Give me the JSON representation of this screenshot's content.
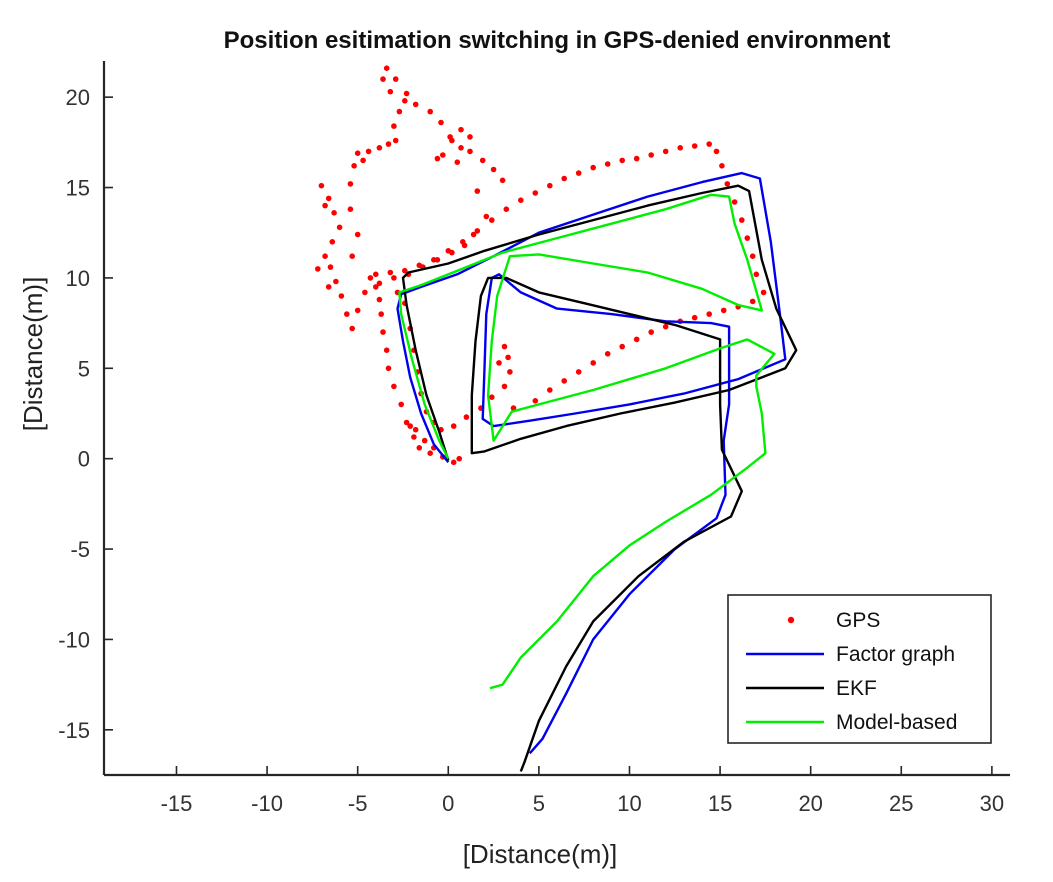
{
  "chart_data": {
    "type": "line",
    "title": "Position esitimation switching in GPS-denied environment",
    "xlabel": "[Distance(m)]",
    "ylabel": "[Distance(m)]",
    "xlim": [
      -19,
      31
    ],
    "ylim": [
      -17.5,
      22
    ],
    "xticks": [
      -15,
      -10,
      -5,
      0,
      5,
      10,
      15,
      20,
      25,
      30
    ],
    "yticks": [
      -15,
      -10,
      -5,
      0,
      5,
      10,
      15,
      20
    ],
    "grid": false,
    "legend_position": "bottom-right",
    "series": [
      {
        "name": "GPS",
        "style": "markers",
        "color": "#ff0000",
        "points": [
          [
            0.6,
            0.0
          ],
          [
            0.3,
            -0.2
          ],
          [
            -0.3,
            0.1
          ],
          [
            -1.0,
            0.3
          ],
          [
            -1.6,
            0.6
          ],
          [
            -1.9,
            1.2
          ],
          [
            -2.1,
            1.8
          ],
          [
            -1.8,
            1.6
          ],
          [
            -1.3,
            1.0
          ],
          [
            -0.8,
            0.6
          ],
          [
            -2.3,
            2.0
          ],
          [
            -2.6,
            3.0
          ],
          [
            -3.0,
            4.0
          ],
          [
            -3.3,
            5.0
          ],
          [
            -3.4,
            6.0
          ],
          [
            -3.6,
            7.0
          ],
          [
            -3.7,
            8.0
          ],
          [
            -3.8,
            8.8
          ],
          [
            -4.0,
            9.5
          ],
          [
            -4.3,
            10.0
          ],
          [
            -4.6,
            9.2
          ],
          [
            -5.0,
            8.2
          ],
          [
            -5.3,
            7.2
          ],
          [
            -5.6,
            8.0
          ],
          [
            -5.9,
            9.0
          ],
          [
            -6.2,
            9.8
          ],
          [
            -6.5,
            10.6
          ],
          [
            -6.8,
            11.2
          ],
          [
            -6.4,
            12.0
          ],
          [
            -6.0,
            12.8
          ],
          [
            -6.3,
            13.6
          ],
          [
            -6.6,
            14.4
          ],
          [
            -7.0,
            15.1
          ],
          [
            -6.8,
            14.0
          ],
          [
            -7.2,
            10.5
          ],
          [
            -6.6,
            9.5
          ],
          [
            -5.3,
            11.2
          ],
          [
            -5.0,
            12.4
          ],
          [
            -5.4,
            13.8
          ],
          [
            -5.4,
            15.2
          ],
          [
            -5.2,
            16.2
          ],
          [
            -5.0,
            16.9
          ],
          [
            -4.7,
            16.5
          ],
          [
            -4.4,
            17.0
          ],
          [
            -3.8,
            17.2
          ],
          [
            -3.3,
            17.4
          ],
          [
            -2.9,
            17.6
          ],
          [
            -3.0,
            18.4
          ],
          [
            -2.7,
            19.2
          ],
          [
            -2.4,
            19.8
          ],
          [
            -3.2,
            20.3
          ],
          [
            -3.6,
            21.0
          ],
          [
            -3.4,
            21.6
          ],
          [
            -2.9,
            21.0
          ],
          [
            -2.3,
            20.2
          ],
          [
            -1.8,
            19.6
          ],
          [
            -1.0,
            19.2
          ],
          [
            -0.4,
            18.6
          ],
          [
            0.1,
            17.8
          ],
          [
            0.7,
            17.2
          ],
          [
            1.2,
            17.0
          ],
          [
            1.9,
            16.5
          ],
          [
            2.5,
            16.0
          ],
          [
            3.0,
            15.4
          ],
          [
            1.2,
            17.8
          ],
          [
            0.7,
            18.2
          ],
          [
            0.2,
            17.6
          ],
          [
            -0.6,
            16.6
          ],
          [
            -0.3,
            16.8
          ],
          [
            0.5,
            16.4
          ],
          [
            1.6,
            14.8
          ],
          [
            2.1,
            13.4
          ],
          [
            1.4,
            12.4
          ],
          [
            0.9,
            11.8
          ],
          [
            0.2,
            11.4
          ],
          [
            -0.6,
            11.0
          ],
          [
            -1.4,
            10.6
          ],
          [
            -2.2,
            10.2
          ],
          [
            -3.0,
            10.0
          ],
          [
            -3.8,
            9.7
          ],
          [
            -2.8,
            9.2
          ],
          [
            -2.4,
            8.6
          ],
          [
            -2.1,
            7.2
          ],
          [
            -1.9,
            6.0
          ],
          [
            -1.7,
            4.8
          ],
          [
            -1.5,
            3.6
          ],
          [
            -1.2,
            2.6
          ],
          [
            -0.8,
            2.0
          ],
          [
            -0.4,
            1.6
          ],
          [
            0.3,
            1.8
          ],
          [
            1.0,
            2.3
          ],
          [
            1.8,
            2.8
          ],
          [
            2.4,
            3.4
          ],
          [
            3.1,
            4.0
          ],
          [
            3.4,
            4.8
          ],
          [
            3.3,
            5.6
          ],
          [
            3.1,
            6.2
          ],
          [
            2.8,
            5.3
          ],
          [
            3.6,
            2.8
          ],
          [
            4.8,
            3.2
          ],
          [
            5.6,
            3.8
          ],
          [
            6.4,
            4.3
          ],
          [
            7.2,
            4.8
          ],
          [
            8.0,
            5.3
          ],
          [
            8.8,
            5.8
          ],
          [
            9.6,
            6.2
          ],
          [
            10.4,
            6.6
          ],
          [
            11.2,
            7.0
          ],
          [
            12.0,
            7.3
          ],
          [
            12.8,
            7.6
          ],
          [
            13.6,
            7.8
          ],
          [
            14.4,
            8.0
          ],
          [
            15.2,
            8.2
          ],
          [
            16.0,
            8.4
          ],
          [
            16.8,
            8.7
          ],
          [
            17.4,
            9.2
          ],
          [
            17.0,
            10.2
          ],
          [
            16.8,
            11.2
          ],
          [
            16.5,
            12.2
          ],
          [
            16.2,
            13.2
          ],
          [
            15.8,
            14.2
          ],
          [
            15.4,
            15.2
          ],
          [
            15.1,
            16.2
          ],
          [
            14.8,
            17.0
          ],
          [
            14.4,
            17.4
          ],
          [
            13.6,
            17.3
          ],
          [
            12.8,
            17.2
          ],
          [
            12.0,
            17.0
          ],
          [
            11.2,
            16.8
          ],
          [
            10.4,
            16.6
          ],
          [
            9.6,
            16.5
          ],
          [
            8.8,
            16.3
          ],
          [
            8.0,
            16.1
          ],
          [
            7.2,
            15.8
          ],
          [
            6.4,
            15.5
          ],
          [
            5.6,
            15.1
          ],
          [
            4.8,
            14.7
          ],
          [
            4.0,
            14.3
          ],
          [
            3.2,
            13.8
          ],
          [
            2.4,
            13.2
          ],
          [
            1.6,
            12.6
          ],
          [
            0.8,
            12.0
          ],
          [
            0.0,
            11.5
          ],
          [
            -0.8,
            11.0
          ],
          [
            -1.6,
            10.7
          ],
          [
            -2.4,
            10.4
          ],
          [
            -3.2,
            10.3
          ],
          [
            -4.0,
            10.2
          ]
        ]
      },
      {
        "name": "Factor graph",
        "style": "line",
        "color": "#0000ee",
        "points": [
          [
            0.0,
            -0.2
          ],
          [
            -0.8,
            0.8
          ],
          [
            -1.5,
            2.5
          ],
          [
            -2.1,
            4.5
          ],
          [
            -2.5,
            6.5
          ],
          [
            -2.8,
            8.3
          ],
          [
            -2.6,
            9.1
          ],
          [
            -1.5,
            9.5
          ],
          [
            0.5,
            10.2
          ],
          [
            2.5,
            11.2
          ],
          [
            5.0,
            12.5
          ],
          [
            8.0,
            13.5
          ],
          [
            11.0,
            14.5
          ],
          [
            14.0,
            15.3
          ],
          [
            16.2,
            15.8
          ],
          [
            17.2,
            15.5
          ],
          [
            17.8,
            12.0
          ],
          [
            18.3,
            8.0
          ],
          [
            18.6,
            5.5
          ],
          [
            16.0,
            4.4
          ],
          [
            13.0,
            3.6
          ],
          [
            10.0,
            3.0
          ],
          [
            7.0,
            2.5
          ],
          [
            4.5,
            2.1
          ],
          [
            2.5,
            1.8
          ],
          [
            1.9,
            2.2
          ],
          [
            2.0,
            5.0
          ],
          [
            2.1,
            8.0
          ],
          [
            2.4,
            10.0
          ],
          [
            2.8,
            10.2
          ],
          [
            4.0,
            9.2
          ],
          [
            6.0,
            8.3
          ],
          [
            9.0,
            8.0
          ],
          [
            12.0,
            7.6
          ],
          [
            14.5,
            7.5
          ],
          [
            15.5,
            7.3
          ],
          [
            15.5,
            3.0
          ],
          [
            15.2,
            1.0
          ],
          [
            15.3,
            -2.0
          ],
          [
            14.8,
            -3.3
          ],
          [
            12.5,
            -5.0
          ],
          [
            10.0,
            -7.5
          ],
          [
            8.0,
            -10.0
          ],
          [
            6.5,
            -13.0
          ],
          [
            5.2,
            -15.5
          ],
          [
            4.5,
            -16.3
          ]
        ]
      },
      {
        "name": "EKF",
        "style": "line",
        "color": "#000000",
        "points": [
          [
            0.0,
            -0.1
          ],
          [
            -0.5,
            1.5
          ],
          [
            -1.2,
            3.5
          ],
          [
            -1.8,
            6.0
          ],
          [
            -2.3,
            8.5
          ],
          [
            -2.5,
            10.0
          ],
          [
            -2.2,
            10.3
          ],
          [
            0.0,
            10.8
          ],
          [
            2.0,
            11.5
          ],
          [
            5.0,
            12.4
          ],
          [
            8.0,
            13.2
          ],
          [
            11.0,
            14.0
          ],
          [
            14.0,
            14.7
          ],
          [
            16.0,
            15.1
          ],
          [
            16.6,
            14.8
          ],
          [
            17.3,
            11.0
          ],
          [
            18.1,
            8.3
          ],
          [
            19.2,
            6.0
          ],
          [
            18.6,
            5.0
          ],
          [
            15.5,
            3.8
          ],
          [
            12.5,
            3.1
          ],
          [
            9.5,
            2.5
          ],
          [
            6.5,
            1.8
          ],
          [
            4.0,
            1.1
          ],
          [
            2.0,
            0.4
          ],
          [
            1.3,
            0.3
          ],
          [
            1.3,
            3.5
          ],
          [
            1.5,
            6.5
          ],
          [
            1.8,
            9.0
          ],
          [
            2.2,
            10.0
          ],
          [
            3.2,
            10.0
          ],
          [
            5.0,
            9.2
          ],
          [
            7.5,
            8.6
          ],
          [
            10.0,
            8.0
          ],
          [
            12.5,
            7.4
          ],
          [
            15.0,
            6.6
          ],
          [
            15.0,
            3.0
          ],
          [
            15.1,
            0.5
          ],
          [
            16.2,
            -1.8
          ],
          [
            15.6,
            -3.2
          ],
          [
            13.0,
            -4.6
          ],
          [
            10.5,
            -6.5
          ],
          [
            8.0,
            -9.0
          ],
          [
            6.5,
            -11.5
          ],
          [
            5.0,
            -14.5
          ],
          [
            4.2,
            -16.8
          ],
          [
            4.0,
            -17.3
          ]
        ]
      },
      {
        "name": "Model-based",
        "style": "line",
        "color": "#00ee00",
        "points": [
          [
            2.3,
            -12.7
          ],
          [
            3.0,
            -12.5
          ],
          [
            4.0,
            -11.0
          ],
          [
            6.0,
            -9.0
          ],
          [
            8.0,
            -6.5
          ],
          [
            10.0,
            -4.8
          ],
          [
            12.0,
            -3.5
          ],
          [
            14.5,
            -2.0
          ],
          [
            16.5,
            -0.5
          ],
          [
            17.5,
            0.3
          ],
          [
            17.3,
            2.5
          ],
          [
            17.0,
            4.0
          ],
          [
            17.0,
            4.6
          ],
          [
            18.0,
            5.8
          ],
          [
            16.5,
            6.6
          ],
          [
            15.0,
            6.1
          ],
          [
            12.0,
            5.0
          ],
          [
            8.0,
            3.8
          ],
          [
            5.0,
            3.0
          ],
          [
            3.5,
            2.6
          ],
          [
            2.5,
            1.0
          ],
          [
            2.2,
            3.5
          ],
          [
            2.4,
            6.5
          ],
          [
            2.7,
            9.0
          ],
          [
            3.4,
            11.2
          ],
          [
            5.0,
            11.3
          ],
          [
            8.0,
            10.8
          ],
          [
            11.0,
            10.3
          ],
          [
            14.0,
            9.4
          ],
          [
            16.0,
            8.5
          ],
          [
            17.3,
            8.2
          ],
          [
            16.5,
            11.0
          ],
          [
            15.8,
            13.0
          ],
          [
            15.5,
            14.5
          ],
          [
            14.5,
            14.6
          ],
          [
            12.0,
            13.8
          ],
          [
            9.0,
            13.0
          ],
          [
            6.0,
            12.2
          ],
          [
            3.0,
            11.4
          ],
          [
            0.5,
            10.4
          ],
          [
            -1.5,
            9.6
          ],
          [
            -2.7,
            9.2
          ],
          [
            -2.6,
            8.0
          ],
          [
            -2.0,
            5.5
          ],
          [
            -1.3,
            3.0
          ],
          [
            -0.5,
            1.0
          ],
          [
            0.0,
            0.0
          ]
        ]
      }
    ]
  }
}
